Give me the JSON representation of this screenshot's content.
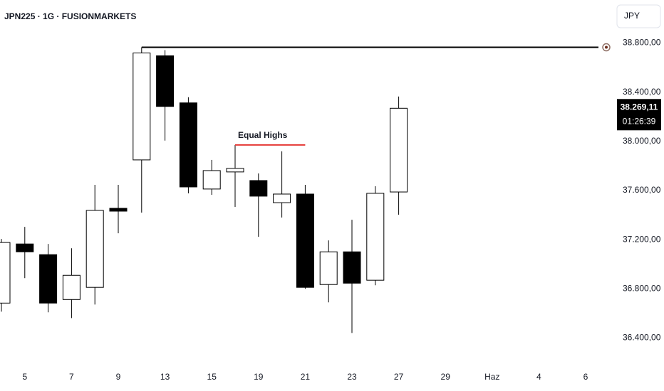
{
  "chart_data": {
    "type": "candlestick",
    "title": "JPN225 · 1G · FUSIONMARKETS",
    "currency": "JPY",
    "categories": [
      null,
      "5",
      null,
      "7",
      null,
      "9",
      null,
      "13",
      null,
      "15",
      null,
      "19",
      null,
      "21",
      null,
      "23",
      null,
      "27",
      null,
      "29",
      null,
      "Haz",
      null,
      "4",
      null,
      "6"
    ],
    "open": [
      36684,
      37165,
      37078,
      36713,
      36812,
      37455,
      37849,
      38696,
      38313,
      37612,
      37751,
      37681,
      37501,
      37571,
      36835,
      37101,
      36870,
      37588,
      null,
      null,
      null,
      null,
      null,
      null,
      null,
      null
    ],
    "high": [
      37206,
      37304,
      37165,
      37130,
      37646,
      37646,
      38765,
      38742,
      38359,
      37849,
      37971,
      37739,
      37919,
      37646,
      37194,
      37362,
      37635,
      38365,
      null,
      null,
      null,
      null,
      null,
      null,
      null,
      null
    ],
    "low": [
      36614,
      36887,
      36609,
      36562,
      36672,
      37252,
      37420,
      38006,
      37577,
      37565,
      37467,
      37223,
      37380,
      36800,
      36690,
      36441,
      36829,
      37403,
      null,
      null,
      null,
      null,
      null,
      null,
      null,
      null
    ],
    "close": [
      37177,
      37101,
      36684,
      36910,
      37438,
      37432,
      38719,
      38284,
      37629,
      37762,
      37780,
      37554,
      37571,
      36812,
      37101,
      36846,
      37577,
      38269.11,
      null,
      null,
      null,
      null,
      null,
      null,
      null,
      null
    ],
    "up_color": "#ffffff",
    "down_color": "#000000",
    "ylim": [
      36200,
      39150
    ],
    "yticks": [
      {
        "value": 36400,
        "label": "36.400,00"
      },
      {
        "value": 36800,
        "label": "36.800,00"
      },
      {
        "value": 37200,
        "label": "37.200,00"
      },
      {
        "value": 37600,
        "label": "37.600,00"
      },
      {
        "value": 38000,
        "label": "38.000,00"
      },
      {
        "value": 38400,
        "label": "38.400,00"
      },
      {
        "value": 38800,
        "label": "38.800,00"
      }
    ],
    "levels": [
      {
        "value": 38765,
        "start": 6,
        "color": "#000000"
      },
      {
        "value": 37971,
        "start": 10,
        "end": 13,
        "color": "#e53935",
        "text": "Equal Highs"
      }
    ],
    "last_price": {
      "value": 38269.11,
      "label": "38.269,11",
      "countdown": "01:26:39"
    }
  }
}
